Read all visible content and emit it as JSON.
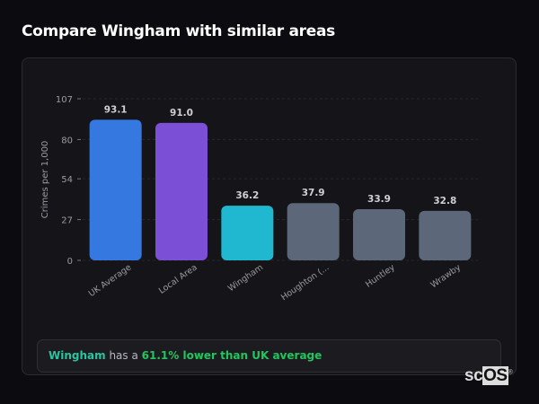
{
  "header": {
    "title": "Compare Wingham with similar areas"
  },
  "chart_data": {
    "type": "bar",
    "title": "",
    "xlabel": "",
    "ylabel": "Crimes per 1,000",
    "ylim": [
      0,
      107
    ],
    "yticks": [
      0,
      27,
      54,
      80,
      107
    ],
    "grid": true,
    "categories": [
      "UK Average",
      "Local Area",
      "Wingham",
      "Houghton (...",
      "Huntley",
      "Wrawby"
    ],
    "values": [
      93.1,
      91.0,
      36.2,
      37.9,
      33.9,
      32.8
    ],
    "value_labels": [
      "93.1",
      "91.0",
      "36.2",
      "37.9",
      "33.9",
      "32.8"
    ],
    "colors": [
      "#3578e0",
      "#7b4fd6",
      "#1fb8d0",
      "#5c6779",
      "#5c6779",
      "#5c6779"
    ]
  },
  "summary": {
    "area": "Wingham",
    "middle": " has a ",
    "highlight": "61.1% lower than UK average",
    "area_color": "#2bc4a0",
    "highlight_color": "#22c55e"
  },
  "logo": {
    "text_a": "sc",
    "text_b": "OS",
    "mark": "®"
  }
}
